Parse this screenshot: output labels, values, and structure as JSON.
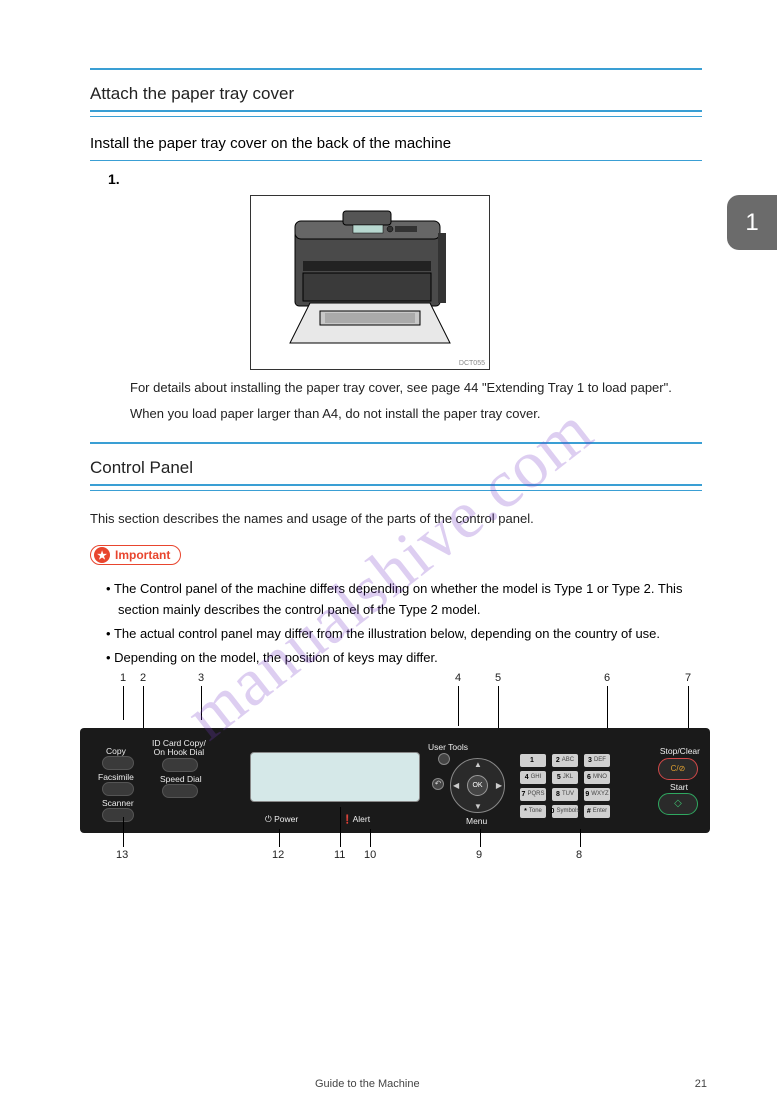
{
  "side_tab": "1",
  "section1": {
    "title": "Attach the paper tray cover",
    "subtitle": "Install the paper tray cover on the back of the machine",
    "step_label": "1.",
    "illus_code": "DCT055"
  },
  "body1_line1": "For details about installing the paper tray cover, see page 44 \"Extending Tray 1 to load paper\".",
  "body1_line2": "When you load paper larger than A4, do not install the paper tray cover.",
  "section2": {
    "title": "Control Panel",
    "intro": "This section describes the names and usage of the parts of the control panel."
  },
  "important": {
    "label": "Important",
    "bullet1": "The Control panel of the machine differs depending on whether the model is Type 1 or Type 2. This section mainly describes the control panel of the Type 2 model.",
    "bullet2": "The actual control panel may differ from the illustration below, depending on the country of use.",
    "bullet3": "Depending on the model, the position of keys may differ."
  },
  "control_panel": {
    "labels": {
      "copy": "Copy",
      "facsimile": "Facsimile",
      "scanner": "Scanner",
      "idcard": "ID Card Copy/\nOn Hook Dial",
      "speeddial": "Speed Dial",
      "power": "Power",
      "alert": "Alert",
      "usertools": "User Tools",
      "menu": "Menu",
      "stopclear": "Stop/Clear",
      "stopclear_glyph": "C/⊘",
      "start": "Start",
      "ok": "OK"
    },
    "keypad": [
      {
        "n": "1",
        "t": ""
      },
      {
        "n": "2",
        "t": "ABC"
      },
      {
        "n": "3",
        "t": "DEF"
      },
      {
        "n": "4",
        "t": "GHI"
      },
      {
        "n": "5",
        "t": "JKL"
      },
      {
        "n": "6",
        "t": "MNO"
      },
      {
        "n": "7",
        "t": "PQRS"
      },
      {
        "n": "8",
        "t": "TUV"
      },
      {
        "n": "9",
        "t": "WXYZ"
      },
      {
        "n": "*",
        "t": "Tone"
      },
      {
        "n": "0",
        "t": "Symbols"
      },
      {
        "n": "#",
        "t": "Enter"
      }
    ],
    "callouts_top": [
      "1",
      "2",
      "3",
      "4",
      "5",
      "6",
      "7"
    ],
    "callouts_bottom": [
      "13",
      "12",
      "11",
      "10",
      "9",
      "8"
    ]
  },
  "footer": {
    "ref": "Guide to the Machine",
    "page": "21"
  },
  "colors": {
    "blue_rule": "#3a9fd4",
    "important_red": "#e8452e",
    "tab_gray": "#6b6b6b",
    "start_green": "#2fa860",
    "stop_red": "#d04848",
    "lcd": "#d5e8e8",
    "watermark": "rgba(120,60,200,0.25)"
  },
  "watermark": "manualshive.com"
}
